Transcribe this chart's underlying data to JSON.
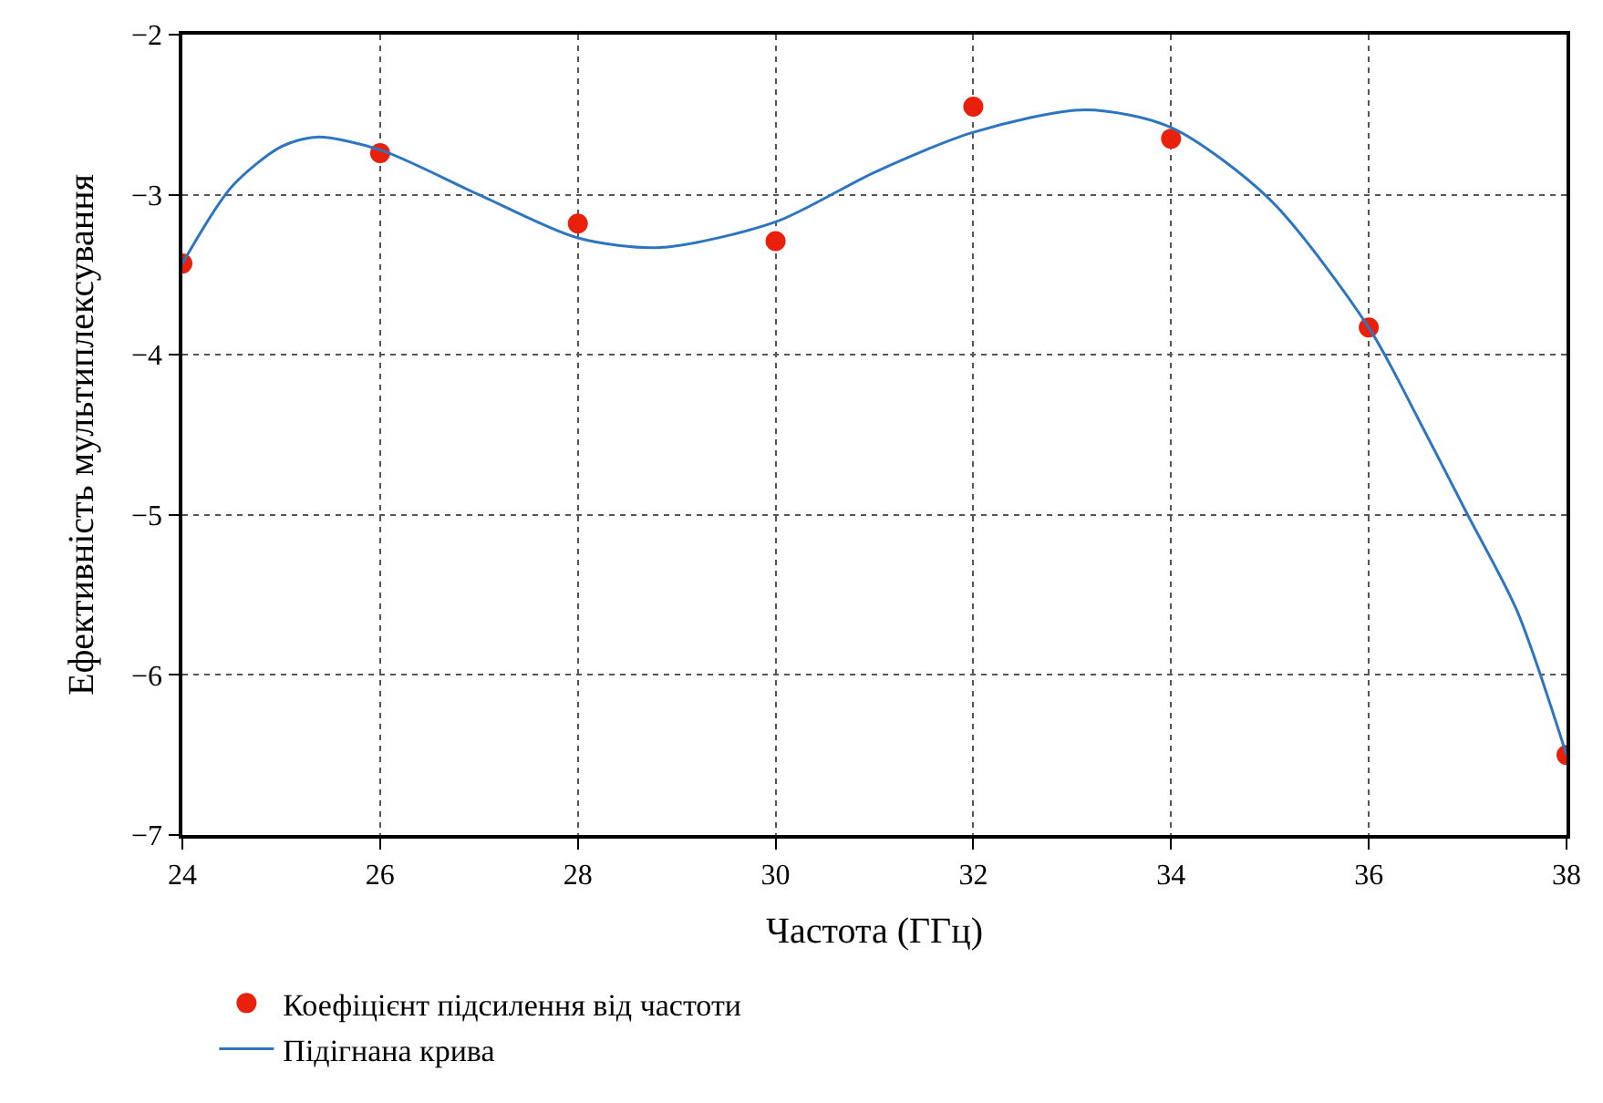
{
  "chart_data": {
    "type": "scatter",
    "xlabel": "Частота (ГГц)",
    "ylabel": "Ефективність мультиплексування",
    "xlim": [
      24,
      38
    ],
    "xticks": [
      24,
      26,
      28,
      30,
      32,
      34,
      36,
      38
    ],
    "ylim": [
      -7,
      -2
    ],
    "yticks": [
      -7,
      -6,
      -5,
      -4,
      -3,
      -2
    ],
    "grid": true,
    "legend": "bottom",
    "marker": "circle",
    "x": [
      24,
      26,
      28,
      30,
      32,
      34,
      36,
      38
    ],
    "series": [
      {
        "name": "Коефіцієнт підсилення від частоти",
        "color": "#e8200c",
        "values": [
          -3.43,
          -2.74,
          -3.18,
          -3.29,
          -2.45,
          -2.65,
          -3.83,
          -6.5
        ]
      },
      {
        "name": "Підігнана крива",
        "type": "line",
        "color": "#2e75c0",
        "marker": "none",
        "x": [
          24,
          24.5,
          25,
          25.36,
          26,
          27,
          28,
          28.83,
          30,
          31,
          32,
          33.13,
          34,
          35,
          36,
          36.5,
          37,
          37.5,
          38
        ],
        "values": [
          -3.43,
          -2.95,
          -2.7,
          -2.64,
          -2.72,
          -3.0,
          -3.27,
          -3.33,
          -3.17,
          -2.86,
          -2.61,
          -2.47,
          -2.58,
          -3.03,
          -3.83,
          -4.4,
          -5.0,
          -5.6,
          -6.5
        ]
      }
    ]
  }
}
